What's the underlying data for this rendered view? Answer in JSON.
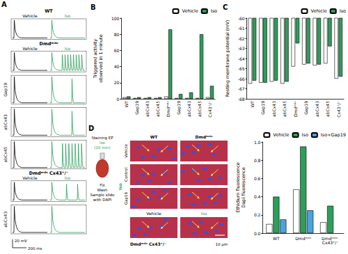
{
  "chart_data": [
    {
      "type": "bar",
      "title": "B",
      "y_label": "Triggered activity\nobserved in 1 minute",
      "categories": [
        "WT",
        "Gap19",
        "abCx43",
        "abCx45",
        "Dmdᵐᵈˣ",
        "Gap19",
        "abCx43",
        "abCx45",
        "Cx43⁺/⁻"
      ],
      "series": [
        {
          "name": "Vehicle",
          "color": "#ffffff",
          "values": [
            2,
            1,
            1,
            1,
            3,
            1,
            1,
            1,
            2
          ]
        },
        {
          "name": "Iso",
          "color": "#2e9e5b",
          "values": [
            3,
            2,
            2,
            2,
            86,
            6,
            8,
            80,
            16
          ]
        }
      ],
      "ylim": [
        0,
        100
      ],
      "yticks": [
        0,
        20,
        40,
        60,
        80,
        100
      ],
      "grid": false,
      "legend": "top-right"
    },
    {
      "type": "bar",
      "title": "C",
      "y_label": "Resting membrane potential (mV)",
      "categories": [
        "WT",
        "Gap19",
        "abCx43",
        "abCx45",
        "Dmdᵐᵈˣ",
        "Gap19",
        "abCx43",
        "abCx45",
        "Cx43⁺/⁻"
      ],
      "series": [
        {
          "name": "Vehicle",
          "color": "#ffffff",
          "values": [
            -66.5,
            -66.4,
            -66.3,
            -66.5,
            -64.8,
            -64.6,
            -64.7,
            -64.5,
            -66.0
          ]
        },
        {
          "name": "Iso",
          "color": "#2e9e5b",
          "values": [
            -66.2,
            -66.4,
            -66.2,
            -66.3,
            -62.5,
            -64.5,
            -64.6,
            -62.8,
            -65.8
          ]
        }
      ],
      "ylim": [
        -68,
        -60
      ],
      "yticks": [
        -68,
        -67,
        -66,
        -65,
        -64,
        -63,
        -62,
        -61,
        -60
      ],
      "grid": false,
      "legend": "top-right"
    },
    {
      "type": "bar",
      "y_label": "Ethidium fluorescence\nDapi fluorescence",
      "categories": [
        "WT",
        "Dmdᵐᵈˣ",
        "Dmdᵐᵈˣ Cx43⁺/⁻"
      ],
      "series": [
        {
          "name": "Vehicle",
          "color": "#ffffff",
          "values": [
            0.1,
            0.48,
            0.12
          ]
        },
        {
          "name": "Iso",
          "color": "#2e9e5b",
          "values": [
            0.4,
            0.95,
            0.3
          ]
        },
        {
          "name": "Iso+Gap19",
          "color": "#4aa3df",
          "values": [
            0.15,
            0.25,
            null
          ]
        }
      ],
      "ylim": [
        0,
        1.0
      ],
      "yticks": [
        {
          "value": 0,
          "label": "0.0"
        },
        0.2,
        0.4,
        0.6,
        0.8,
        {
          "value": 1.0,
          "label": "1.0"
        }
      ],
      "grid": false,
      "legend": "top-right"
    }
  ],
  "panel_a": {
    "title": "A",
    "columns": [
      "Vehicle",
      "Iso"
    ],
    "colors": {
      "Vehicle": "#000000",
      "Iso": "#2e9e5b"
    },
    "rows": [
      {
        "group": "WT",
        "iso_spikes": 0
      },
      {
        "group": "Dmdᵐᵈˣ",
        "iso_spikes": 8
      },
      {
        "label": "Gap19",
        "iso_spikes": 1
      },
      {
        "label": "abCx43",
        "iso_spikes": 1
      },
      {
        "label": "abCx45",
        "iso_spikes": 7
      },
      {
        "group": "Dmdᵐᵈˣ Cx43⁺/⁻",
        "iso_spikes": 2
      },
      {
        "label": "abCx43",
        "iso_spikes": 0
      }
    ],
    "scale_bar_y": "20 mV",
    "scale_bar_x": "200 ms"
  },
  "panel_d_images": {
    "title": "D",
    "protocol": [
      "Staining EP",
      "Iso",
      "(20 min)",
      "Fix",
      "Wash",
      "Sample slide",
      "with DAPI"
    ],
    "columns": [
      "WT",
      "Dmdᵐᵈˣ"
    ],
    "rows": [
      "Vehicle",
      "Control",
      "Gap19"
    ],
    "iso_label": "Iso",
    "knockout": {
      "label": "Dmdᵐᵈˣ Cx43⁺/⁻",
      "columns": [
        "Vehicle",
        "Iso"
      ]
    },
    "scale_bar": "10 µm"
  }
}
